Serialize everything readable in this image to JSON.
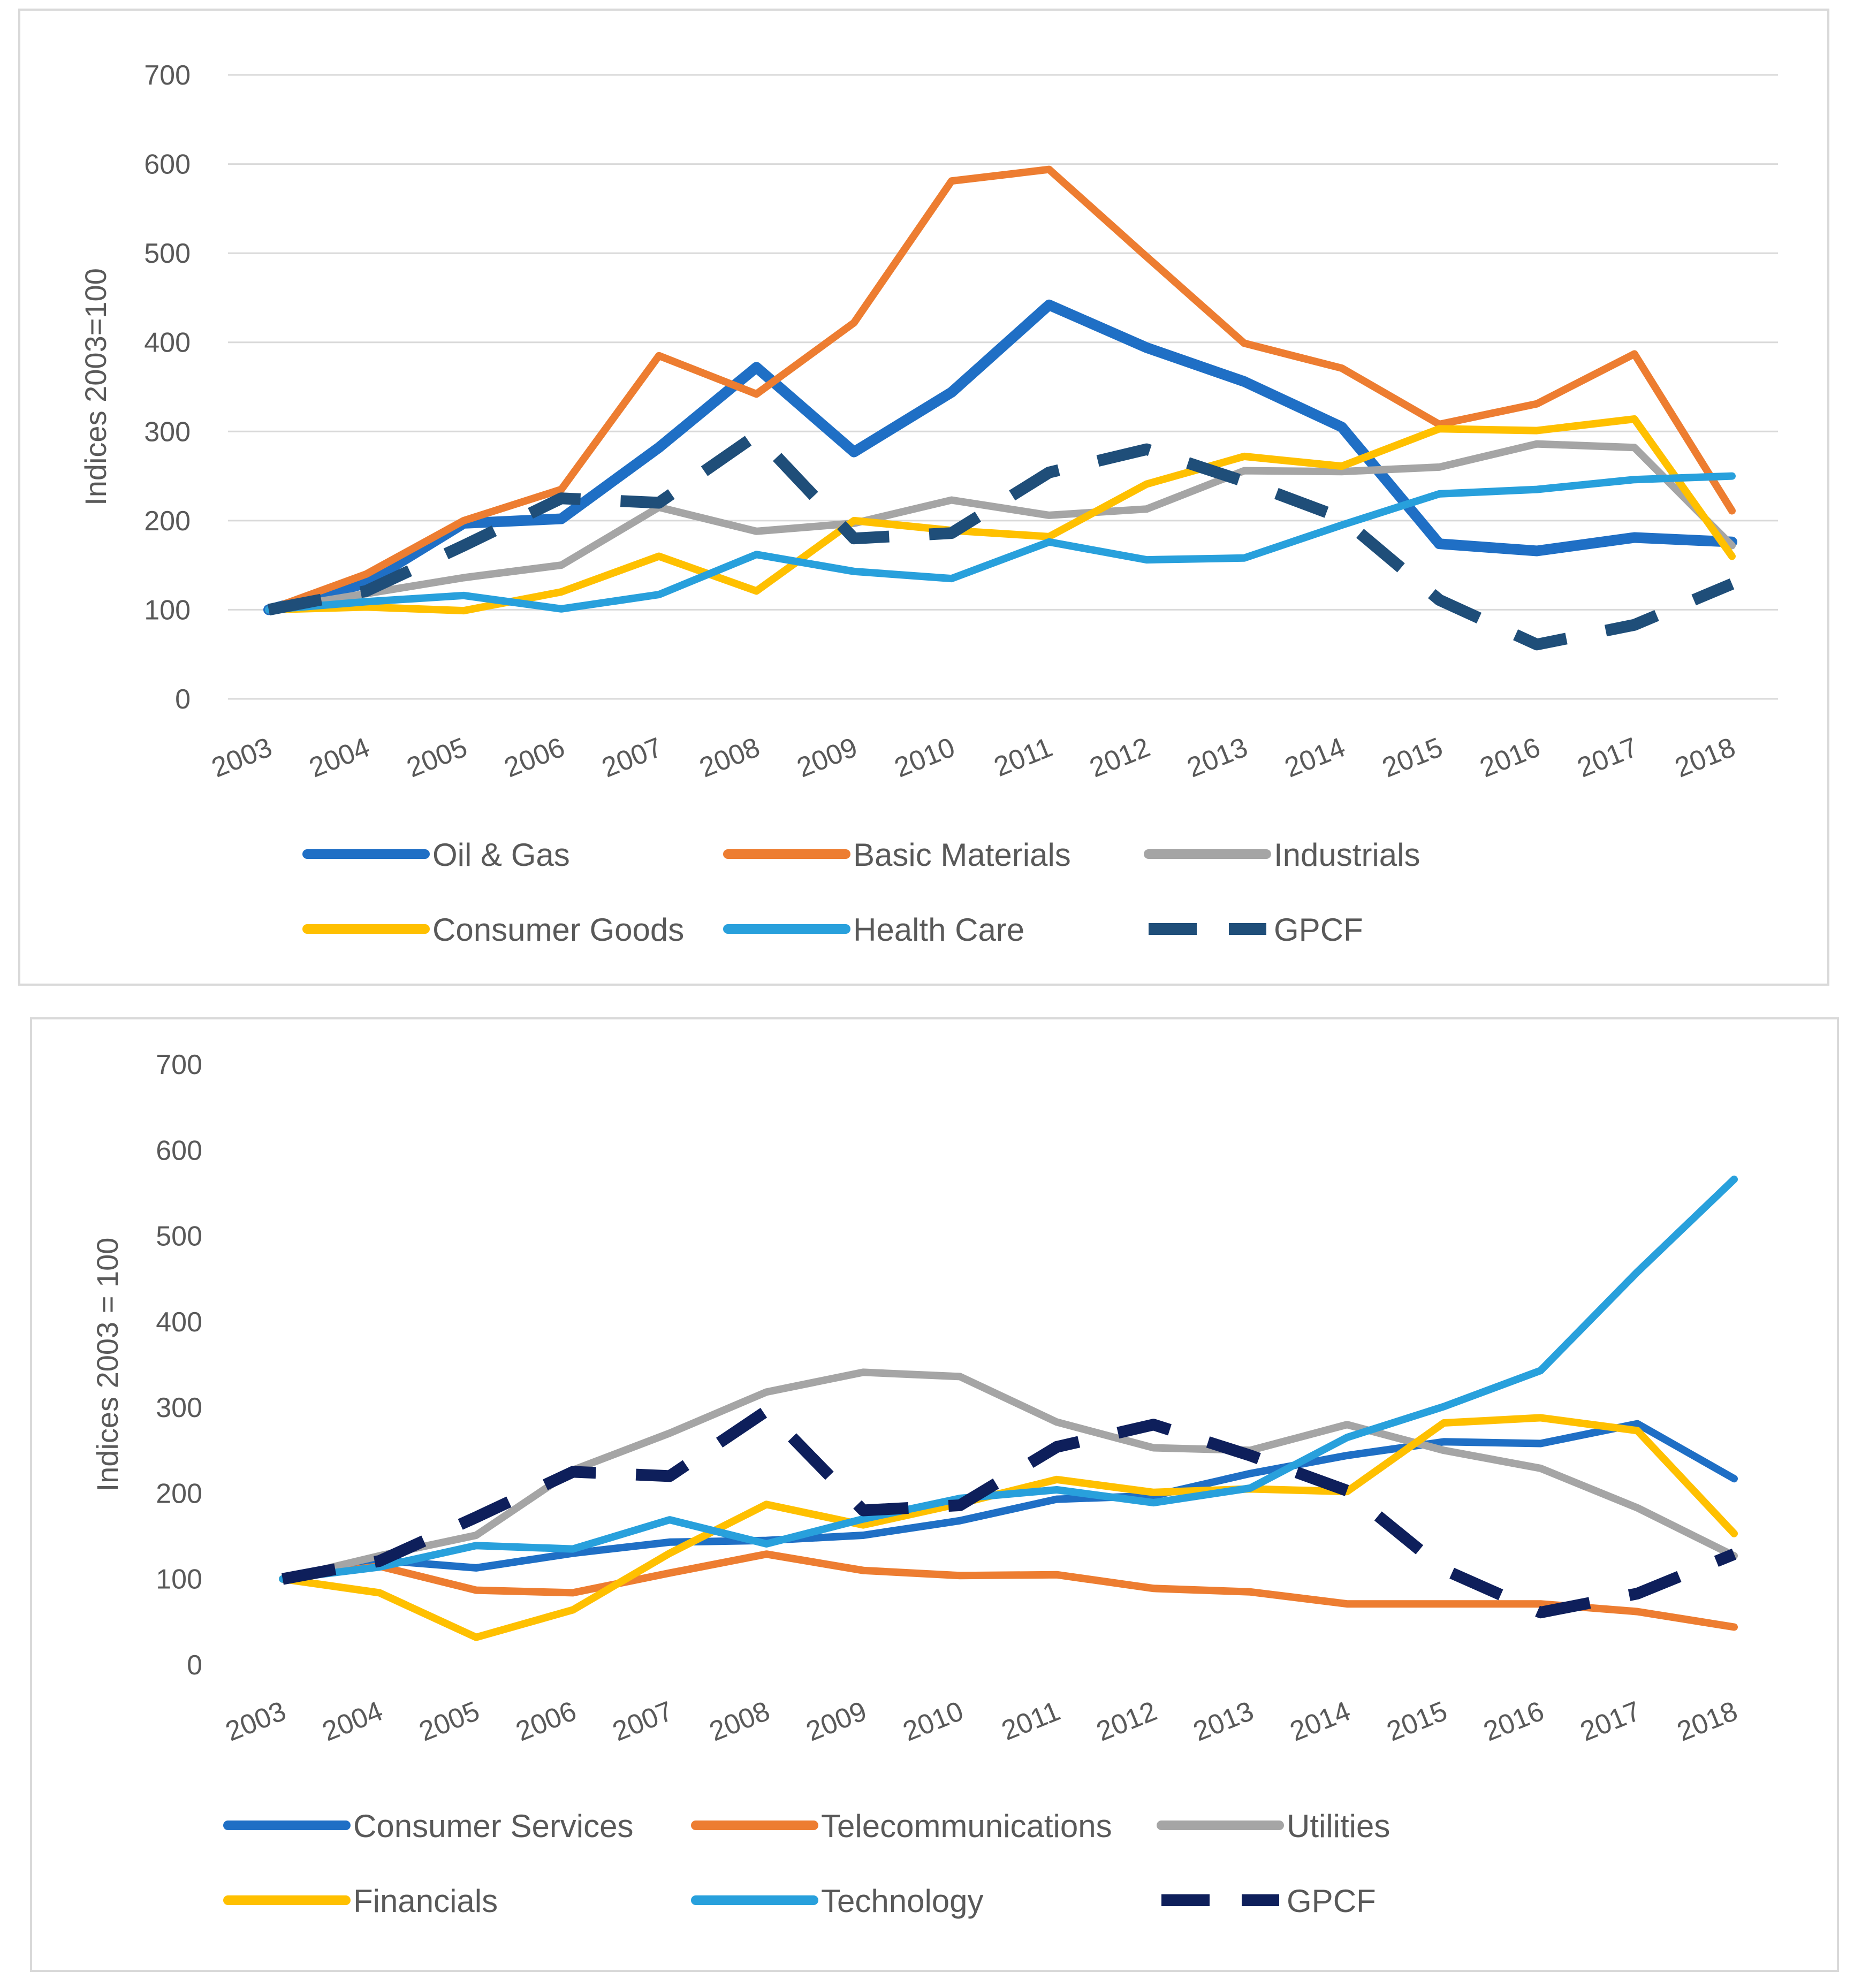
{
  "chart_data": [
    {
      "type": "line",
      "title": "",
      "xlabel": "",
      "ylabel": "Indices 2003=100",
      "ylim": [
        0,
        700
      ],
      "yticks": [
        0,
        100,
        200,
        300,
        400,
        500,
        600,
        700
      ],
      "grid": true,
      "legend_position": "bottom",
      "categories": [
        "2003",
        "2004",
        "2005",
        "2006",
        "2007",
        "2008",
        "2009",
        "2010",
        "2011",
        "2012",
        "2013",
        "2014",
        "2015",
        "2016",
        "2017",
        "2018"
      ],
      "series": [
        {
          "name": "Oil & Gas",
          "color": "#1f6fc5",
          "dashed": false,
          "values": [
            100,
            130,
            197,
            202,
            282,
            372,
            277,
            344,
            442,
            394,
            356,
            305,
            174,
            166,
            181,
            176
          ]
        },
        {
          "name": "Basic Materials",
          "color": "#ed7d31",
          "dashed": false,
          "values": [
            100,
            140,
            200,
            235,
            385,
            342,
            422,
            581,
            594,
            496,
            399,
            371,
            308,
            331,
            387,
            211
          ]
        },
        {
          "name": "Industrials",
          "color": "#a5a5a5",
          "dashed": false,
          "values": [
            100,
            118,
            136,
            150,
            215,
            188,
            197,
            223,
            206,
            213,
            256,
            255,
            260,
            286,
            282,
            172
          ]
        },
        {
          "name": "Consumer Goods",
          "color": "#ffc000",
          "dashed": false,
          "values": [
            100,
            103,
            99,
            120,
            160,
            121,
            200,
            189,
            182,
            241,
            272,
            261,
            303,
            301,
            314,
            160
          ]
        },
        {
          "name": "Health Care",
          "color": "#28a0dc",
          "dashed": false,
          "values": [
            100,
            109,
            116,
            101,
            117,
            162,
            143,
            135,
            176,
            156,
            158,
            195,
            230,
            235,
            246,
            250
          ]
        },
        {
          "name": "GPCF",
          "color": "#1f4e79",
          "dashed": true,
          "values": [
            100,
            121,
            172,
            225,
            220,
            296,
            180,
            186,
            254,
            280,
            244,
            203,
            111,
            61,
            83,
            129
          ]
        }
      ]
    },
    {
      "type": "line",
      "title": "",
      "xlabel": "",
      "ylabel": "Indices 2003 = 100",
      "ylim": [
        0,
        700
      ],
      "yticks": [
        0,
        100,
        200,
        300,
        400,
        500,
        600,
        700
      ],
      "grid": false,
      "legend_position": "bottom",
      "categories": [
        "2003",
        "2004",
        "2005",
        "2006",
        "2007",
        "2008",
        "2009",
        "2010",
        "2011",
        "2012",
        "2013",
        "2014",
        "2015",
        "2016",
        "2017",
        "2018"
      ],
      "series": [
        {
          "name": "Consumer Services",
          "color": "#1f6fc5",
          "dashed": false,
          "values": [
            100,
            122,
            113,
            130,
            143,
            145,
            151,
            168,
            193,
            197,
            223,
            244,
            260,
            258,
            281,
            217
          ]
        },
        {
          "name": "Telecommunications",
          "color": "#ed7d31",
          "dashed": false,
          "values": [
            100,
            115,
            87,
            84,
            107,
            129,
            110,
            104,
            105,
            89,
            85,
            71,
            71,
            71,
            62,
            44
          ]
        },
        {
          "name": "Utilities",
          "color": "#a5a5a5",
          "dashed": false,
          "values": [
            100,
            127,
            151,
            227,
            270,
            318,
            341,
            336,
            283,
            253,
            250,
            280,
            250,
            229,
            183,
            127
          ]
        },
        {
          "name": "Financials",
          "color": "#ffc000",
          "dashed": false,
          "values": [
            100,
            84,
            32,
            64,
            130,
            187,
            163,
            188,
            216,
            201,
            205,
            202,
            282,
            288,
            273,
            153
          ]
        },
        {
          "name": "Technology",
          "color": "#28a0dc",
          "dashed": false,
          "values": [
            100,
            114,
            139,
            135,
            169,
            141,
            170,
            194,
            204,
            189,
            206,
            265,
            301,
            343,
            458,
            566
          ]
        },
        {
          "name": "GPCF",
          "color": "#0e1f5b",
          "dashed": true,
          "values": [
            100,
            121,
            172,
            225,
            220,
            296,
            180,
            186,
            254,
            280,
            244,
            203,
            111,
            61,
            83,
            129
          ]
        }
      ]
    }
  ]
}
